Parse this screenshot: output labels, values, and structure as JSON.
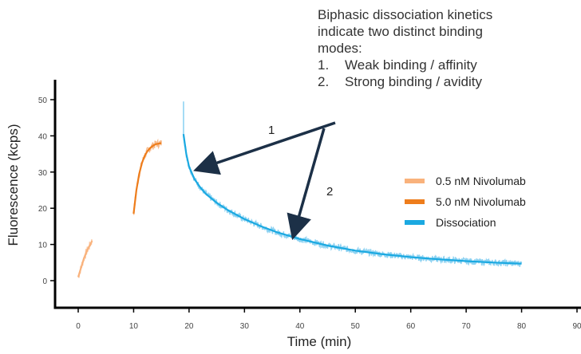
{
  "chart_data": {
    "type": "line",
    "xlabel": "Time (min)",
    "ylabel": "Fluorescence (kcps)",
    "xlim": [
      -5,
      90
    ],
    "ylim": [
      -8,
      55
    ],
    "xticks": [
      "0",
      "10",
      "20",
      "30",
      "40",
      "50",
      "60",
      "70",
      "80",
      "90"
    ],
    "yticks": [
      "0",
      "10",
      "20",
      "30",
      "40",
      "50"
    ],
    "legend_position": "right",
    "series": [
      {
        "name": "0.5 nM Nivolumab",
        "color": "#f9b27c",
        "x": [
          0,
          0.5,
          1,
          1.5,
          2,
          2.5
        ],
        "y": [
          1,
          3.5,
          6,
          8,
          9.5,
          11
        ]
      },
      {
        "name": "5.0 nM Nivolumab",
        "color": "#ee7d1c",
        "x": [
          10,
          10.5,
          11,
          11.5,
          12,
          12.5,
          13,
          13.5,
          14,
          15
        ],
        "y": [
          18.5,
          25,
          29.5,
          32.5,
          34.5,
          35.8,
          36.7,
          37.3,
          37.7,
          38
        ]
      },
      {
        "name": "Dissociation",
        "color": "#1ba9e1",
        "x": [
          19,
          19.5,
          20,
          21,
          22,
          23,
          25,
          27,
          30,
          33,
          36,
          40,
          45,
          50,
          55,
          60,
          65,
          70,
          75,
          80
        ],
        "y": [
          40.5,
          35,
          31.5,
          28,
          25.8,
          24,
          21.5,
          19.5,
          17,
          15,
          13.3,
          11.5,
          9.7,
          8.3,
          7.3,
          6.5,
          5.9,
          5.4,
          5.0,
          4.7
        ]
      }
    ],
    "annotations": {
      "text_lines": [
        "Biphasic dissociation kinetics",
        "indicate two distinct binding",
        "modes:"
      ],
      "list": [
        {
          "num": "1.",
          "text": "Weak binding / affinity"
        },
        {
          "num": "2.",
          "text": "Strong binding / avidity"
        }
      ],
      "arrow_labels": [
        "1",
        "2"
      ],
      "arrow_color": "#1c3047"
    }
  }
}
